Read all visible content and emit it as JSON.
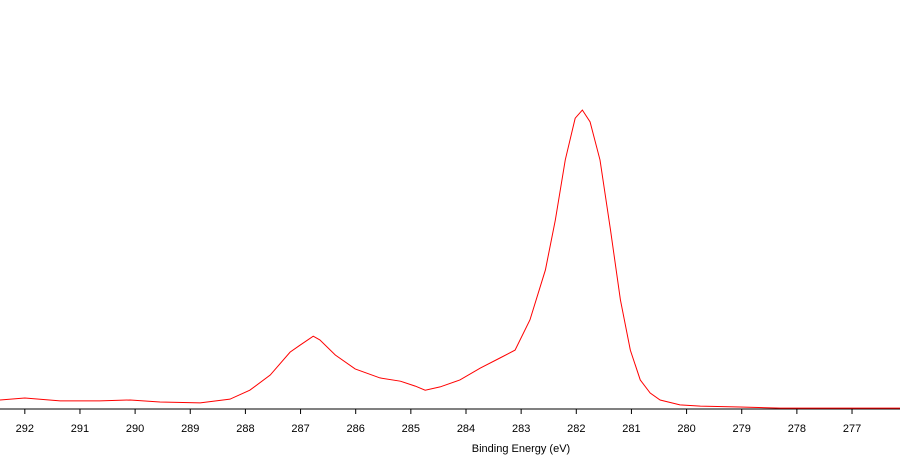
{
  "chart_data": {
    "type": "line",
    "x_label": "Binding Energy (eV)",
    "x": [
      292.45,
      292.0,
      291.36,
      290.64,
      290.09,
      289.55,
      288.82,
      288.28,
      287.92,
      287.55,
      287.19,
      287.01,
      286.77,
      286.65,
      286.37,
      286.01,
      285.56,
      285.19,
      284.92,
      284.74,
      284.47,
      284.11,
      283.74,
      283.38,
      283.11,
      282.84,
      282.56,
      282.38,
      282.2,
      282.02,
      281.89,
      281.75,
      281.57,
      281.38,
      281.2,
      281.02,
      280.84,
      280.66,
      280.48,
      280.12,
      279.75,
      279.03,
      278.3,
      277.58,
      276.85,
      276.13
    ],
    "values": [
      2.2,
      2.7,
      2.0,
      2.0,
      2.2,
      1.7,
      1.5,
      2.4,
      4.6,
      8.3,
      13.9,
      15.6,
      17.8,
      16.9,
      13.2,
      9.8,
      7.6,
      6.8,
      5.6,
      4.6,
      5.4,
      7.1,
      10.0,
      12.5,
      14.4,
      21.8,
      34.0,
      46.2,
      60.9,
      71.1,
      73.1,
      70.2,
      60.9,
      43.8,
      26.7,
      14.4,
      7.1,
      3.9,
      2.2,
      1.0,
      0.7,
      0.5,
      0.2,
      0.2,
      0.2,
      0.2
    ],
    "color": "#ff0000",
    "xlim": [
      292.45,
      276.13
    ],
    "xticks": [
      292,
      291,
      290,
      289,
      288,
      287,
      286,
      285,
      284,
      283,
      282,
      281,
      280,
      279,
      278,
      277
    ],
    "ylim": [
      0,
      100
    ]
  }
}
